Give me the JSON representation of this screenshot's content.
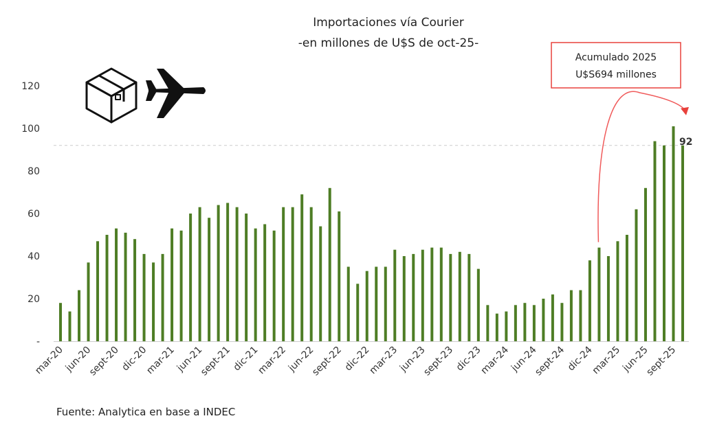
{
  "chart_data": {
    "type": "bar",
    "title": "Importaciones vía Courier",
    "subtitle": "-en millones de U$S de oct-25-",
    "xlabel": "",
    "ylabel": "",
    "ylim": [
      0,
      120
    ],
    "yticks": [
      0,
      20,
      40,
      60,
      80,
      100,
      120
    ],
    "ytick_labels": [
      "-",
      "20",
      "40",
      "60",
      "80",
      "100",
      "120"
    ],
    "grid": false,
    "bar_color": "#4e7d25",
    "categories": [
      "mar-20",
      "abr-20",
      "may-20",
      "jun-20",
      "jul-20",
      "ago-20",
      "sept-20",
      "oct-20",
      "nov-20",
      "dic-20",
      "ene-21",
      "feb-21",
      "mar-21",
      "abr-21",
      "may-21",
      "jun-21",
      "jul-21",
      "ago-21",
      "sept-21",
      "oct-21",
      "nov-21",
      "dic-21",
      "ene-22",
      "feb-22",
      "mar-22",
      "abr-22",
      "may-22",
      "jun-22",
      "jul-22",
      "ago-22",
      "sept-22",
      "oct-22",
      "nov-22",
      "dic-22",
      "ene-23",
      "feb-23",
      "mar-23",
      "abr-23",
      "may-23",
      "jun-23",
      "jul-23",
      "ago-23",
      "sept-23",
      "oct-23",
      "nov-23",
      "dic-23",
      "ene-24",
      "feb-24",
      "mar-24",
      "abr-24",
      "may-24",
      "jun-24",
      "jul-24",
      "ago-24",
      "sept-24",
      "oct-24",
      "nov-24",
      "dic-24",
      "ene-25",
      "feb-25",
      "mar-25",
      "abr-25",
      "may-25",
      "jun-25",
      "jul-25",
      "ago-25",
      "sept-25",
      "oct-25"
    ],
    "xtick_labels": [
      "mar-20",
      "jun-20",
      "sept-20",
      "dic-20",
      "mar-21",
      "jun-21",
      "sept-21",
      "dic-21",
      "mar-22",
      "jun-22",
      "sept-22",
      "dic-22",
      "mar-23",
      "jun-23",
      "sept-23",
      "dic-23",
      "mar-24",
      "jun-24",
      "sept-24",
      "dic-24",
      "mar-25",
      "jun-25",
      "sept-25"
    ],
    "values": [
      18,
      14,
      24,
      37,
      47,
      50,
      53,
      51,
      48,
      41,
      37,
      41,
      53,
      52,
      60,
      63,
      58,
      64,
      65,
      63,
      60,
      53,
      55,
      52,
      63,
      63,
      69,
      63,
      54,
      72,
      61,
      35,
      27,
      33,
      35,
      35,
      43,
      40,
      41,
      43,
      44,
      44,
      41,
      42,
      41,
      34,
      17,
      13,
      14,
      17,
      18,
      17,
      20,
      22,
      18,
      24,
      24,
      38,
      44,
      40,
      47,
      50,
      62,
      72,
      94,
      92,
      101,
      92
    ],
    "reference_line": {
      "value": 92,
      "style": "dashed",
      "color": "#cccccc"
    },
    "data_label": "92",
    "annotation": {
      "line1": "Acumulado 2025",
      "line2": "U$S694 millones",
      "color": "#e8413c"
    },
    "icons": [
      "package-box-icon",
      "airplane-icon"
    ]
  },
  "source": "Fuente: Analytica en base a INDEC"
}
